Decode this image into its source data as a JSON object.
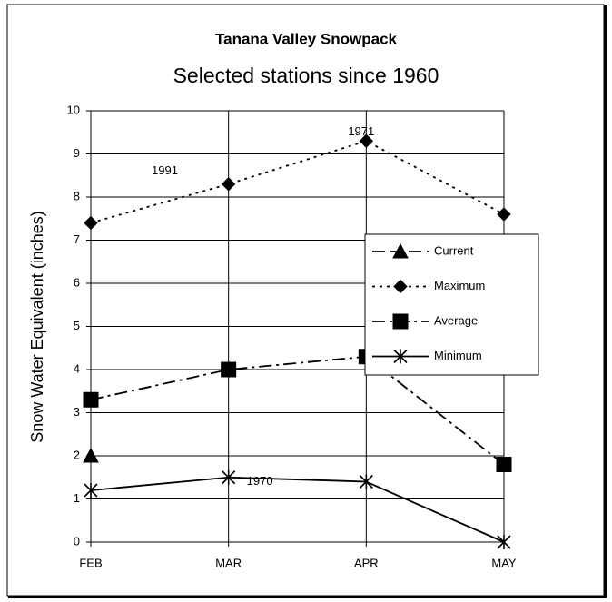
{
  "chart_data": {
    "type": "line",
    "title": "Tanana Valley Snowpack",
    "subtitle": "Selected stations since 1960",
    "y_label": "Snow Water Equivalent (inches)",
    "categories": [
      "FEB",
      "MAR",
      "APR",
      "MAY"
    ],
    "series": [
      {
        "name": "Current",
        "color": "#000000",
        "dash": "14 6",
        "marker": "triangle",
        "values": [
          2.0,
          null,
          null,
          null
        ]
      },
      {
        "name": "Maximum",
        "color": "#000000",
        "dash": "3 5",
        "marker": "diamond",
        "values": [
          7.4,
          8.3,
          9.3,
          7.6
        ]
      },
      {
        "name": "Average",
        "color": "#000000",
        "dash": "14 5 3 5",
        "marker": "square",
        "values": [
          3.3,
          4.0,
          4.3,
          1.8
        ]
      },
      {
        "name": "Minimum",
        "color": "#000000",
        "dash": "none",
        "marker": "star",
        "values": [
          1.2,
          1.5,
          1.4,
          0
        ]
      }
    ],
    "annotations": [
      {
        "text": "1991",
        "category": 0,
        "y": 8.6
      },
      {
        "text": "1971",
        "category": 2,
        "y": 9.5
      },
      {
        "text": "1970",
        "category": 1,
        "y": 1.4
      }
    ],
    "ylim": [
      0,
      10
    ],
    "yticks": [
      0,
      1,
      2,
      3,
      4,
      5,
      6,
      7,
      8,
      9,
      10
    ],
    "grid": true,
    "legend": "right"
  }
}
